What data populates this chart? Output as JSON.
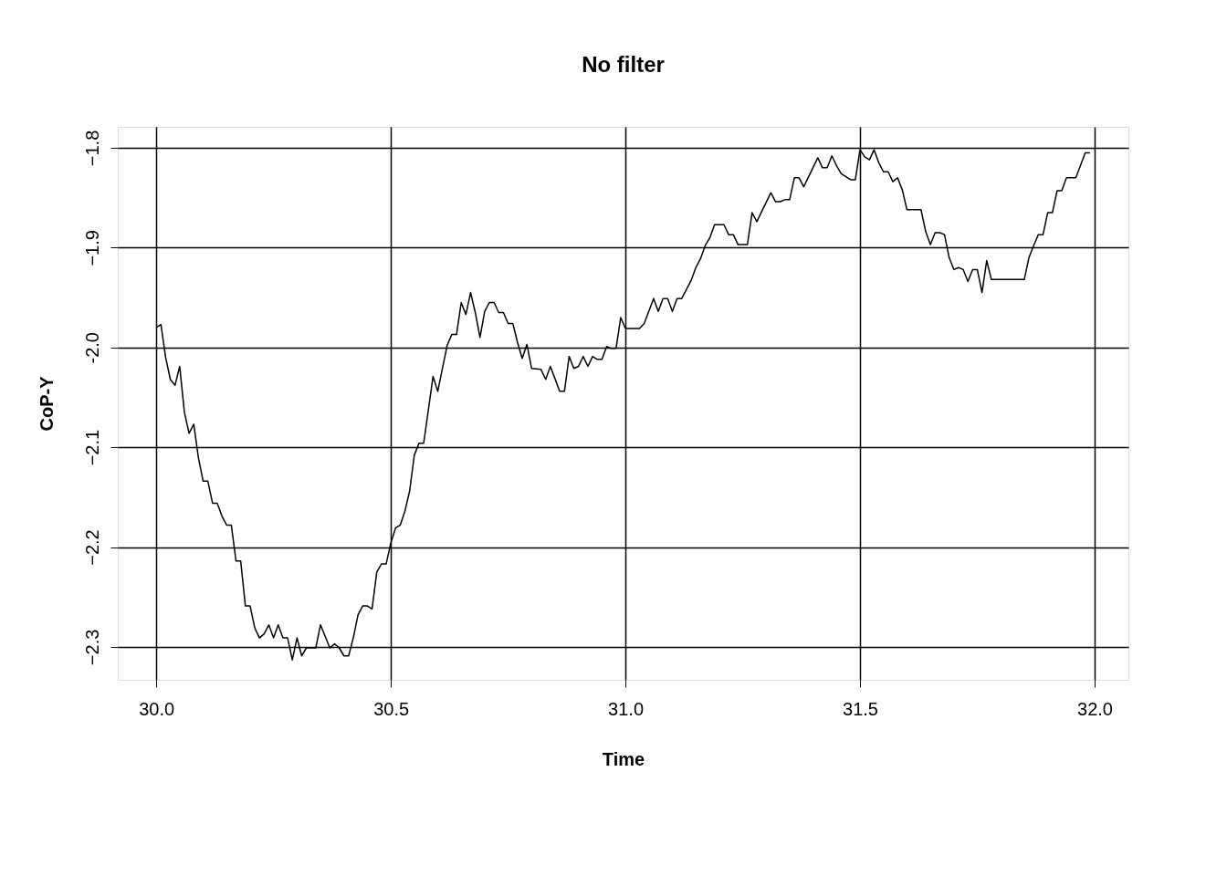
{
  "chart_data": {
    "type": "line",
    "title": "No filter",
    "xlabel": "Time",
    "ylabel": "CoP-Y",
    "x": [
      30.0,
      30.01,
      30.02,
      30.03,
      30.04,
      30.05,
      30.06,
      30.07,
      30.08,
      30.09,
      30.1,
      30.11,
      30.12,
      30.13,
      30.14,
      30.15,
      30.16,
      30.17,
      30.18,
      30.19,
      30.2,
      30.21,
      30.22,
      30.23,
      30.24,
      30.25,
      30.26,
      30.27,
      30.28,
      30.29,
      30.3,
      30.31,
      30.32,
      30.34,
      30.35,
      30.37,
      30.38,
      30.39,
      30.4,
      30.41,
      30.42,
      30.43,
      30.44,
      30.45,
      30.46,
      30.47,
      30.48,
      30.49,
      30.5,
      30.51,
      30.52,
      30.53,
      30.54,
      30.55,
      30.56,
      30.57,
      30.59,
      30.6,
      30.62,
      30.63,
      30.64,
      30.65,
      30.66,
      30.67,
      30.68,
      30.69,
      30.7,
      30.71,
      30.72,
      30.73,
      30.74,
      30.75,
      30.76,
      30.77,
      30.78,
      30.79,
      30.8,
      30.82,
      30.83,
      30.84,
      30.86,
      30.87,
      30.88,
      30.89,
      30.9,
      30.91,
      30.92,
      30.93,
      30.94,
      30.95,
      30.96,
      30.97,
      30.98,
      30.99,
      31.0,
      31.03,
      31.04,
      31.06,
      31.07,
      31.08,
      31.09,
      31.1,
      31.11,
      31.12,
      31.14,
      31.15,
      31.16,
      31.17,
      31.18,
      31.19,
      31.21,
      31.22,
      31.23,
      31.24,
      31.26,
      31.27,
      31.28,
      31.31,
      31.32,
      31.33,
      31.34,
      31.35,
      31.36,
      31.37,
      31.38,
      31.41,
      31.42,
      31.43,
      31.44,
      31.45,
      31.46,
      31.47,
      31.48,
      31.49,
      31.5,
      31.51,
      31.52,
      31.53,
      31.54,
      31.55,
      31.56,
      31.57,
      31.58,
      31.59,
      31.6,
      31.63,
      31.64,
      31.65,
      31.66,
      31.67,
      31.68,
      31.69,
      31.7,
      31.71,
      31.72,
      31.73,
      31.74,
      31.75,
      31.76,
      31.77,
      31.78,
      31.85,
      31.86,
      31.87,
      31.88,
      31.89,
      31.9,
      31.91,
      31.92,
      31.93,
      31.94,
      31.96,
      31.98,
      31.99
    ],
    "values": [
      -1.98,
      -1.977,
      -2.01,
      -2.032,
      -2.038,
      -2.019,
      -2.065,
      -2.086,
      -2.077,
      -2.111,
      -2.134,
      -2.134,
      -2.156,
      -2.156,
      -2.169,
      -2.178,
      -2.178,
      -2.214,
      -2.214,
      -2.259,
      -2.259,
      -2.281,
      -2.291,
      -2.287,
      -2.278,
      -2.291,
      -2.278,
      -2.291,
      -2.291,
      -2.313,
      -2.291,
      -2.309,
      -2.301,
      -2.301,
      -2.278,
      -2.301,
      -2.297,
      -2.301,
      -2.309,
      -2.309,
      -2.291,
      -2.268,
      -2.259,
      -2.259,
      -2.262,
      -2.225,
      -2.217,
      -2.217,
      -2.196,
      -2.181,
      -2.178,
      -2.164,
      -2.144,
      -2.108,
      -2.096,
      -2.096,
      -2.029,
      -2.044,
      -1.998,
      -1.987,
      -1.987,
      -1.955,
      -1.967,
      -1.945,
      -1.965,
      -1.99,
      -1.964,
      -1.955,
      -1.955,
      -1.965,
      -1.965,
      -1.976,
      -1.976,
      -1.995,
      -2.011,
      -1.997,
      -2.021,
      -2.022,
      -2.032,
      -2.019,
      -2.044,
      -2.044,
      -2.009,
      -2.021,
      -2.019,
      -2.009,
      -2.019,
      -2.009,
      -2.012,
      -2.012,
      -1.999,
      -2.001,
      -2.001,
      -1.97,
      -1.981,
      -1.981,
      -1.976,
      -1.951,
      -1.964,
      -1.951,
      -1.951,
      -1.964,
      -1.951,
      -1.951,
      -1.933,
      -1.92,
      -1.911,
      -1.898,
      -1.89,
      -1.877,
      -1.877,
      -1.887,
      -1.887,
      -1.897,
      -1.897,
      -1.865,
      -1.874,
      -1.845,
      -1.854,
      -1.854,
      -1.852,
      -1.852,
      -1.83,
      -1.83,
      -1.839,
      -1.81,
      -1.82,
      -1.82,
      -1.808,
      -1.818,
      -1.826,
      -1.829,
      -1.832,
      -1.832,
      -1.802,
      -1.809,
      -1.812,
      -1.802,
      -1.815,
      -1.824,
      -1.824,
      -1.834,
      -1.83,
      -1.842,
      -1.862,
      -1.862,
      -1.884,
      -1.897,
      -1.885,
      -1.885,
      -1.887,
      -1.91,
      -1.922,
      -1.92,
      -1.922,
      -1.934,
      -1.922,
      -1.922,
      -1.945,
      -1.913,
      -1.932,
      -1.932,
      -1.91,
      -1.898,
      -1.887,
      -1.887,
      -1.865,
      -1.865,
      -1.843,
      -1.843,
      -1.83,
      -1.83,
      -1.805,
      -1.805
    ],
    "color": "#000000",
    "line_style": "solid",
    "marker": "none",
    "grid": true,
    "xlim": [
      29.918,
      32.072
    ],
    "ylim": [
      -2.333,
      -1.779
    ],
    "xticks": [
      {
        "value": 30,
        "label": "30.0"
      },
      30.5,
      {
        "value": 31,
        "label": "31.0"
      },
      31.5,
      {
        "value": 32,
        "label": "32.0"
      }
    ],
    "yticks": [
      -2.3,
      -2.2,
      -2.1,
      {
        "value": -2.0,
        "label": "-2.0"
      },
      -1.9,
      -1.8
    ]
  }
}
